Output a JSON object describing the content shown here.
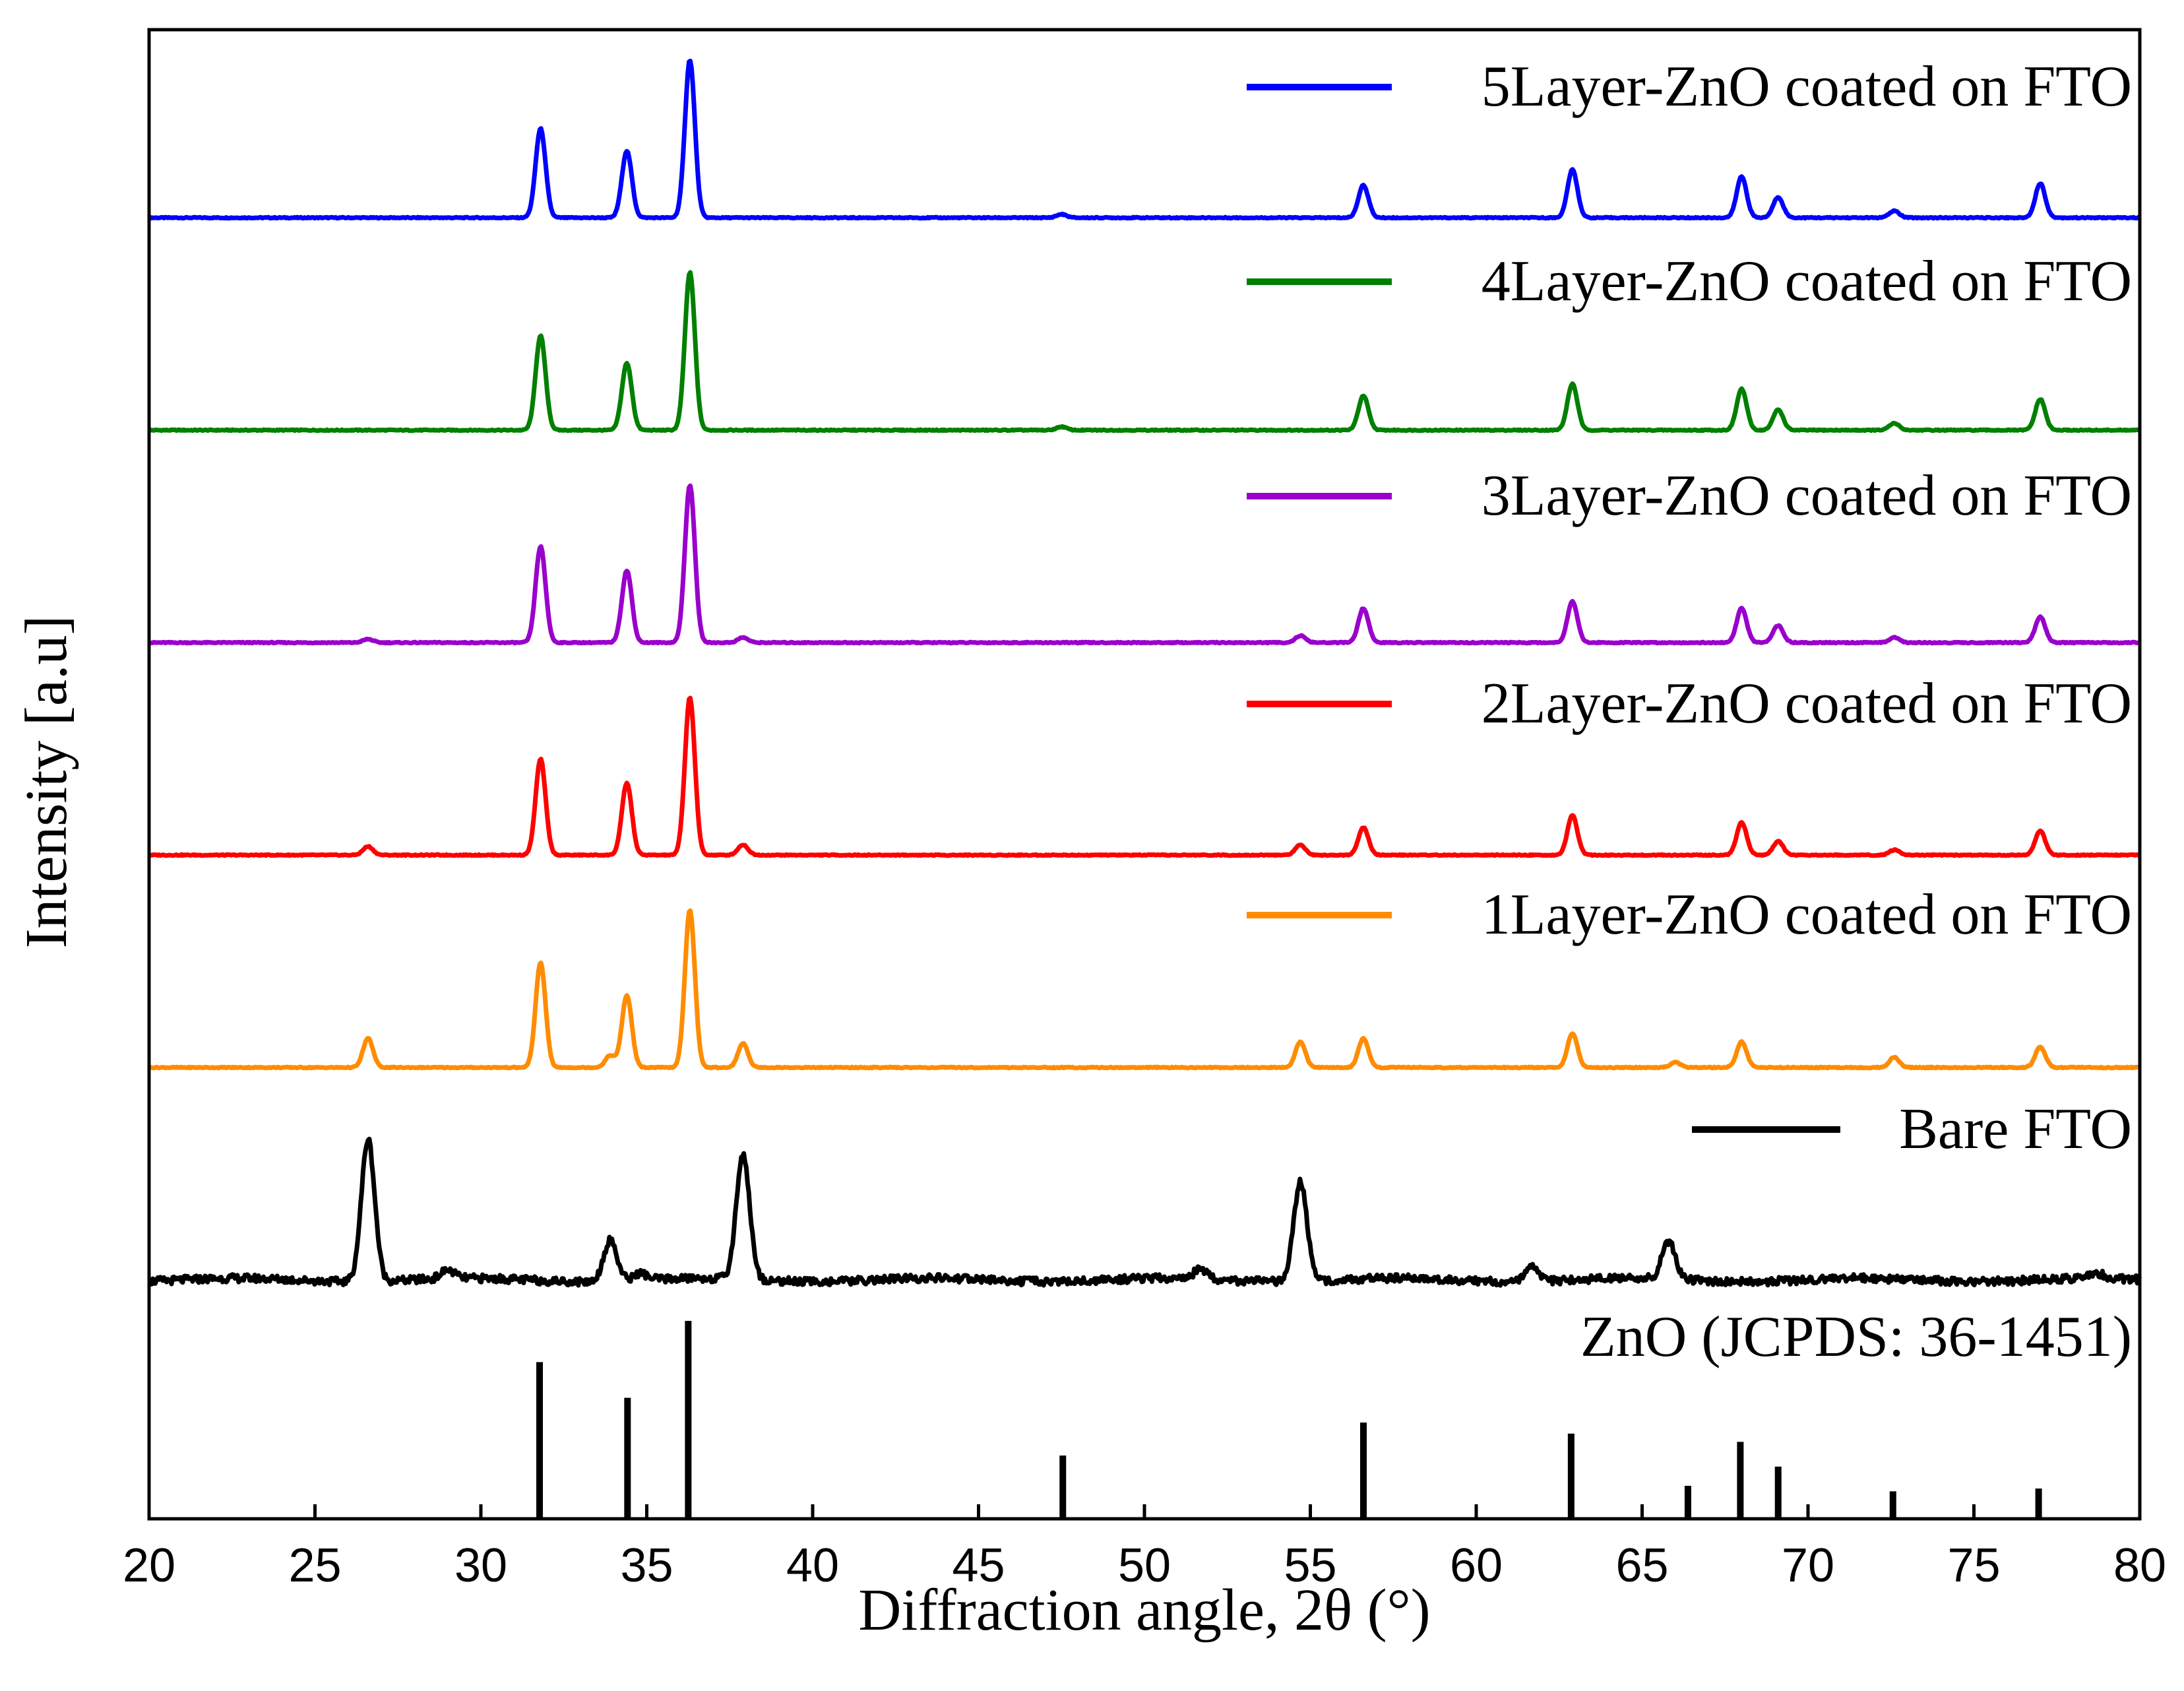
{
  "chart_data": {
    "type": "line",
    "title": "",
    "xlabel": "Diffraction angle, 2θ (°)",
    "ylabel": "Intensity [a.u]",
    "xlim": [
      20,
      80
    ],
    "xticks": [
      20,
      25,
      30,
      35,
      40,
      45,
      50,
      55,
      60,
      65,
      70,
      75,
      80
    ],
    "series": [
      {
        "name": "5Layer-ZnO coated on FTO",
        "color": "#0000ff",
        "offset": 6.0,
        "peaks": [
          [
            31.8,
            0.52
          ],
          [
            34.4,
            0.39
          ],
          [
            36.3,
            0.92
          ],
          [
            47.5,
            0.02
          ],
          [
            56.6,
            0.19
          ],
          [
            62.9,
            0.28
          ],
          [
            68.0,
            0.24
          ],
          [
            69.1,
            0.12
          ],
          [
            72.6,
            0.04
          ],
          [
            77.0,
            0.2
          ]
        ]
      },
      {
        "name": "4Layer-ZnO coated on FTO",
        "color": "#008000",
        "offset": 4.8,
        "peaks": [
          [
            31.8,
            0.55
          ],
          [
            34.4,
            0.39
          ],
          [
            36.3,
            0.92
          ],
          [
            47.5,
            0.02
          ],
          [
            56.6,
            0.2
          ],
          [
            62.9,
            0.27
          ],
          [
            68.0,
            0.24
          ],
          [
            69.1,
            0.12
          ],
          [
            72.6,
            0.04
          ],
          [
            77.0,
            0.18
          ]
        ]
      },
      {
        "name": "3Layer-ZnO coated on FTO",
        "color": "#9900cc",
        "offset": 3.6,
        "peaks": [
          [
            26.6,
            0.02
          ],
          [
            31.8,
            0.56
          ],
          [
            34.4,
            0.42
          ],
          [
            36.3,
            0.92
          ],
          [
            37.9,
            0.03
          ],
          [
            56.6,
            0.2
          ],
          [
            54.7,
            0.04
          ],
          [
            62.9,
            0.24
          ],
          [
            68.0,
            0.2
          ],
          [
            69.1,
            0.1
          ],
          [
            72.6,
            0.03
          ],
          [
            77.0,
            0.15
          ]
        ]
      },
      {
        "name": "2Layer-ZnO coated on FTO",
        "color": "#ff0000",
        "offset": 2.4,
        "peaks": [
          [
            26.6,
            0.05
          ],
          [
            31.8,
            0.56
          ],
          [
            34.4,
            0.42
          ],
          [
            36.3,
            0.92
          ],
          [
            37.9,
            0.06
          ],
          [
            56.6,
            0.16
          ],
          [
            54.7,
            0.06
          ],
          [
            62.9,
            0.23
          ],
          [
            68.0,
            0.19
          ],
          [
            69.1,
            0.08
          ],
          [
            72.6,
            0.03
          ],
          [
            77.0,
            0.14
          ]
        ]
      },
      {
        "name": "1Layer-ZnO coated on FTO",
        "color": "#ff8c00",
        "offset": 1.2,
        "peaks": [
          [
            26.6,
            0.17
          ],
          [
            31.8,
            0.61
          ],
          [
            33.9,
            0.07
          ],
          [
            34.4,
            0.42
          ],
          [
            36.3,
            0.92
          ],
          [
            37.9,
            0.14
          ],
          [
            56.6,
            0.17
          ],
          [
            54.7,
            0.15
          ],
          [
            62.9,
            0.2
          ],
          [
            68.0,
            0.15
          ],
          [
            66.0,
            0.03
          ],
          [
            72.6,
            0.06
          ],
          [
            77.0,
            0.12
          ]
        ]
      },
      {
        "name": "Bare FTO",
        "color": "#000000",
        "offset": 0.0,
        "peaks": [
          [
            26.6,
            0.83
          ],
          [
            29.0,
            0.05
          ],
          [
            33.9,
            0.24
          ],
          [
            34.8,
            0.04
          ],
          [
            37.9,
            0.73
          ],
          [
            51.7,
            0.06
          ],
          [
            54.7,
            0.58
          ],
          [
            61.7,
            0.08
          ],
          [
            65.8,
            0.22
          ],
          [
            78.7,
            0.03
          ]
        ]
      }
    ],
    "reference": {
      "name": "ZnO (JCPDS: 36-1451)",
      "color": "#000000",
      "lines": [
        [
          31.77,
          0.57
        ],
        [
          34.42,
          0.44
        ],
        [
          36.25,
          0.72
        ],
        [
          47.54,
          0.23
        ],
        [
          56.6,
          0.35
        ],
        [
          62.86,
          0.31
        ],
        [
          66.38,
          0.12
        ],
        [
          67.96,
          0.28
        ],
        [
          69.1,
          0.19
        ],
        [
          72.56,
          0.1
        ],
        [
          76.95,
          0.11
        ]
      ]
    }
  }
}
